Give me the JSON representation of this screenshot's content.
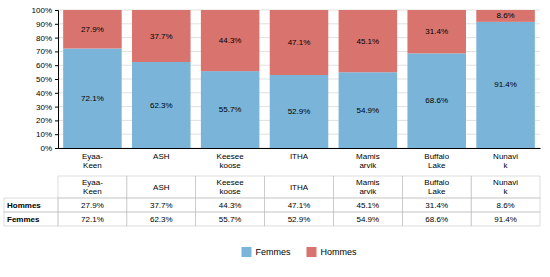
{
  "chart_data": {
    "type": "bar",
    "stacked": true,
    "categories": [
      "Eyaa-\nKeen",
      "ASH",
      "Keesee\nkoose",
      "ITHA",
      "Mamis\narvik",
      "Buffalo\nLake",
      "Nunavi\nk"
    ],
    "series": [
      {
        "name": "Femmes",
        "color": "#7ab4d8",
        "values": [
          72.1,
          62.3,
          55.7,
          52.9,
          54.9,
          68.6,
          91.4
        ],
        "value_labels": [
          "72.1%",
          "62.3%",
          "55.7%",
          "52.9%",
          "54.9%",
          "68.6%",
          "91.4%"
        ]
      },
      {
        "name": "Hommes",
        "color": "#d9736e",
        "values": [
          27.9,
          37.7,
          44.3,
          47.1,
          45.1,
          31.4,
          8.6
        ],
        "value_labels": [
          "27.9%",
          "37.7%",
          "44.3%",
          "47.1%",
          "45.1%",
          "31.4%",
          "8.6%"
        ]
      }
    ],
    "ylim": [
      0,
      100
    ],
    "yticks": [
      {
        "value": 0,
        "label": "0%"
      },
      {
        "value": 10,
        "label": "10%"
      },
      {
        "value": 20,
        "label": "20%"
      },
      {
        "value": 30,
        "label": "30%"
      },
      {
        "value": 40,
        "label": "40%"
      },
      {
        "value": 50,
        "label": "50%"
      },
      {
        "value": 60,
        "label": "60%"
      },
      {
        "value": 70,
        "label": "70%"
      },
      {
        "value": 80,
        "label": "80%"
      },
      {
        "value": 90,
        "label": "90%"
      },
      {
        "value": 100,
        "label": "100%"
      }
    ],
    "grid": true,
    "data_labels": true,
    "legend": "bottom"
  }
}
